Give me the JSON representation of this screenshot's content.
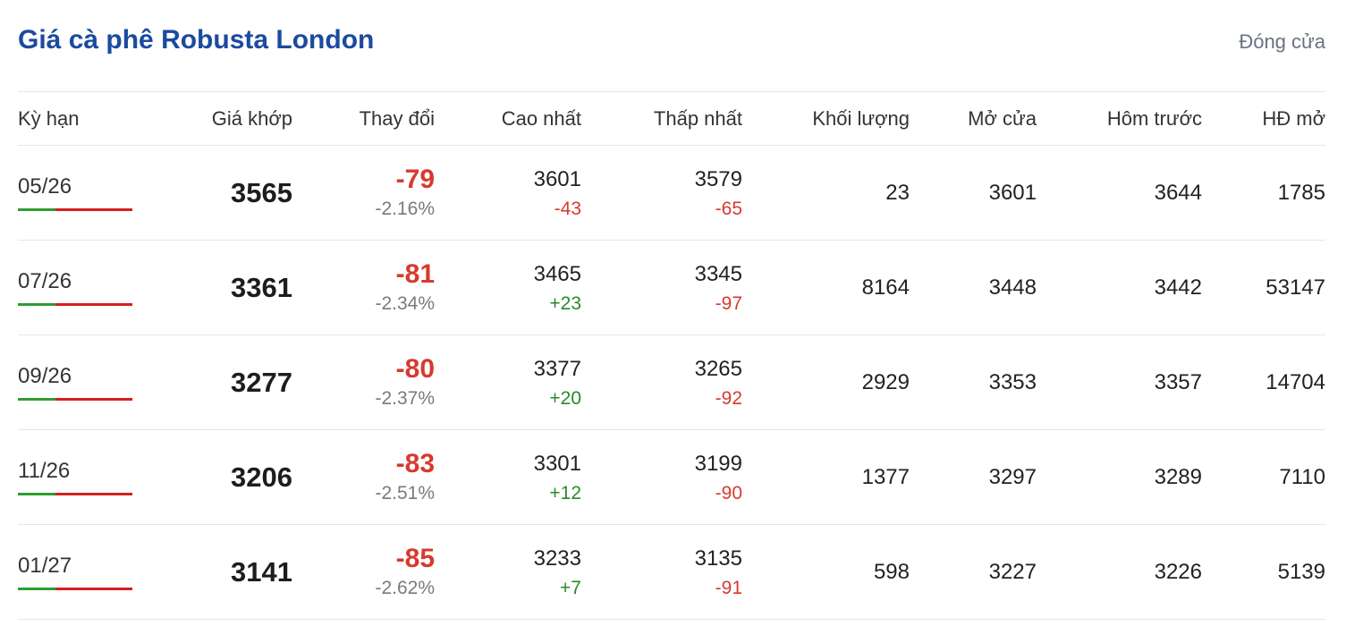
{
  "title": "Giá cà phê Robusta London",
  "status": "Đóng cửa",
  "colors": {
    "title": "#1b4aa0",
    "negative": "#d63a2f",
    "positive": "#2a8a2a",
    "bar_green": "#2f9d2f",
    "bar_red": "#d42020"
  },
  "columns": [
    "Kỳ hạn",
    "Giá khớp",
    "Thay đổi",
    "Cao nhất",
    "Thấp nhất",
    "Khối lượng",
    "Mở cửa",
    "Hôm trước",
    "HĐ mở"
  ],
  "rows": [
    {
      "term": "05/26",
      "price": "3565",
      "change": "-79",
      "change_pct": "-2.16%",
      "high": "3601",
      "high_diff": "-43",
      "high_dir": "neg",
      "low": "3579",
      "low_diff": "-65",
      "low_dir": "neg",
      "volume": "23",
      "open": "3601",
      "prev": "3644",
      "oi": "1785"
    },
    {
      "term": "07/26",
      "price": "3361",
      "change": "-81",
      "change_pct": "-2.34%",
      "high": "3465",
      "high_diff": "+23",
      "high_dir": "pos",
      "low": "3345",
      "low_diff": "-97",
      "low_dir": "neg",
      "volume": "8164",
      "open": "3448",
      "prev": "3442",
      "oi": "53147"
    },
    {
      "term": "09/26",
      "price": "3277",
      "change": "-80",
      "change_pct": "-2.37%",
      "high": "3377",
      "high_diff": "+20",
      "high_dir": "pos",
      "low": "3265",
      "low_diff": "-92",
      "low_dir": "neg",
      "volume": "2929",
      "open": "3353",
      "prev": "3357",
      "oi": "14704"
    },
    {
      "term": "11/26",
      "price": "3206",
      "change": "-83",
      "change_pct": "-2.51%",
      "high": "3301",
      "high_diff": "+12",
      "high_dir": "pos",
      "low": "3199",
      "low_diff": "-90",
      "low_dir": "neg",
      "volume": "1377",
      "open": "3297",
      "prev": "3289",
      "oi": "7110"
    },
    {
      "term": "01/27",
      "price": "3141",
      "change": "-85",
      "change_pct": "-2.62%",
      "high": "3233",
      "high_diff": "+7",
      "high_dir": "pos",
      "low": "3135",
      "low_diff": "-91",
      "low_dir": "neg",
      "volume": "598",
      "open": "3227",
      "prev": "3226",
      "oi": "5139"
    }
  ]
}
